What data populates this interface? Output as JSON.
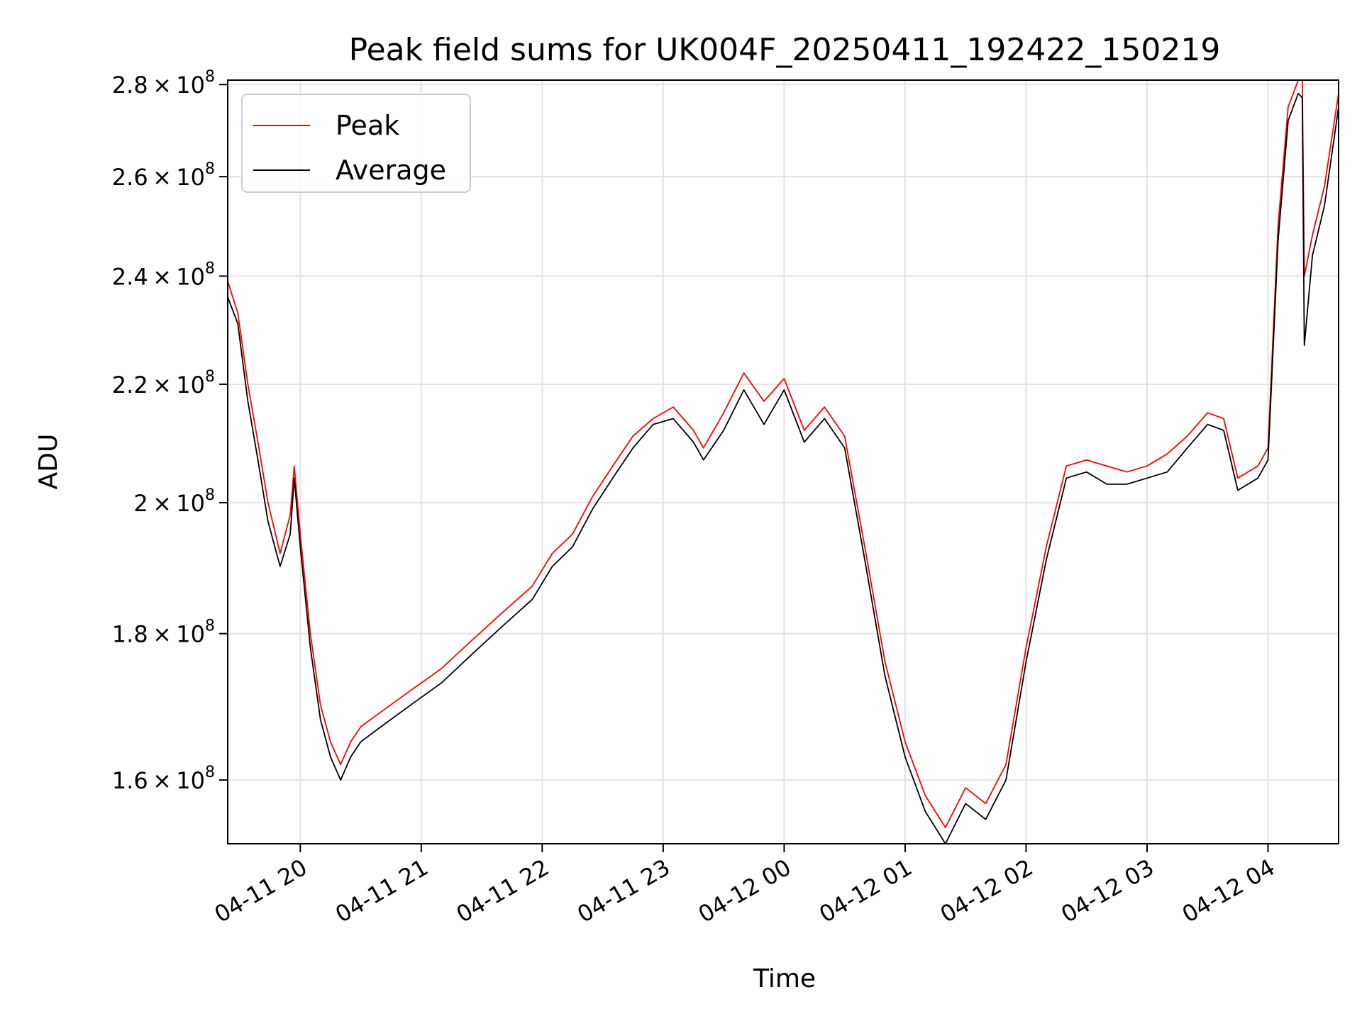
{
  "chart_data": {
    "type": "line",
    "title": "Peak field sums for UK004F_20250411_192422_150219",
    "xlabel": "Time",
    "ylabel": "ADU",
    "y_scale": "log",
    "ylim": [
      152000000,
      281000000
    ],
    "xlim": [
      "2025-04-11 19:24",
      "2025-04-12 04:35"
    ],
    "grid": true,
    "legend_position": "top-left",
    "x_ticks": [
      {
        "t": "2025-04-11 20:00",
        "label": "04-11 20"
      },
      {
        "t": "2025-04-11 21:00",
        "label": "04-11 21"
      },
      {
        "t": "2025-04-11 22:00",
        "label": "04-11 22"
      },
      {
        "t": "2025-04-11 23:00",
        "label": "04-11 23"
      },
      {
        "t": "2025-04-12 00:00",
        "label": "04-12 00"
      },
      {
        "t": "2025-04-12 01:00",
        "label": "04-12 01"
      },
      {
        "t": "2025-04-12 02:00",
        "label": "04-12 02"
      },
      {
        "t": "2025-04-12 03:00",
        "label": "04-12 03"
      },
      {
        "t": "2025-04-12 04:00",
        "label": "04-12 04"
      }
    ],
    "y_ticks": [
      {
        "value": 160000000,
        "mantissa": "1.6",
        "base": "10",
        "exp": "8"
      },
      {
        "value": 180000000,
        "mantissa": "1.8",
        "base": "10",
        "exp": "8"
      },
      {
        "value": 200000000,
        "mantissa": "2",
        "base": "10",
        "exp": "8"
      },
      {
        "value": 220000000,
        "mantissa": "2.2",
        "base": "10",
        "exp": "8"
      },
      {
        "value": 240000000,
        "mantissa": "2.4",
        "base": "10",
        "exp": "8"
      },
      {
        "value": 260000000,
        "mantissa": "2.6",
        "base": "10",
        "exp": "8"
      },
      {
        "value": 280000000,
        "mantissa": "2.8",
        "base": "10",
        "exp": "8"
      }
    ],
    "x": [
      "2025-04-11 19:24",
      "2025-04-11 19:29",
      "2025-04-11 19:34",
      "2025-04-11 19:39",
      "2025-04-11 19:44",
      "2025-04-11 19:50",
      "2025-04-11 19:55",
      "2025-04-11 19:57",
      "2025-04-11 20:00",
      "2025-04-11 20:05",
      "2025-04-11 20:10",
      "2025-04-11 20:15",
      "2025-04-11 20:20",
      "2025-04-11 20:25",
      "2025-04-11 20:30",
      "2025-04-11 20:40",
      "2025-04-11 20:55",
      "2025-04-11 21:10",
      "2025-04-11 21:25",
      "2025-04-11 21:40",
      "2025-04-11 21:55",
      "2025-04-11 22:05",
      "2025-04-11 22:15",
      "2025-04-11 22:25",
      "2025-04-11 22:35",
      "2025-04-11 22:45",
      "2025-04-11 22:55",
      "2025-04-11 23:05",
      "2025-04-11 23:15",
      "2025-04-11 23:20",
      "2025-04-11 23:30",
      "2025-04-11 23:40",
      "2025-04-11 23:50",
      "2025-04-12 00:00",
      "2025-04-12 00:10",
      "2025-04-12 00:20",
      "2025-04-12 00:30",
      "2025-04-12 00:40",
      "2025-04-12 00:50",
      "2025-04-12 01:00",
      "2025-04-12 01:10",
      "2025-04-12 01:20",
      "2025-04-12 01:30",
      "2025-04-12 01:40",
      "2025-04-12 01:50",
      "2025-04-12 02:00",
      "2025-04-12 02:10",
      "2025-04-12 02:20",
      "2025-04-12 02:30",
      "2025-04-12 02:40",
      "2025-04-12 02:50",
      "2025-04-12 03:00",
      "2025-04-12 03:10",
      "2025-04-12 03:20",
      "2025-04-12 03:30",
      "2025-04-12 03:38",
      "2025-04-12 03:45",
      "2025-04-12 03:55",
      "2025-04-12 04:00",
      "2025-04-12 04:05",
      "2025-04-12 04:10",
      "2025-04-12 04:15",
      "2025-04-12 04:17",
      "2025-04-12 04:18",
      "2025-04-12 04:22",
      "2025-04-12 04:28",
      "2025-04-12 04:35"
    ],
    "series": [
      {
        "name": "Peak",
        "color": "#ff0000",
        "values": [
          239000000,
          233000000,
          220000000,
          210000000,
          200000000,
          192000000,
          198000000,
          206000000,
          195000000,
          180000000,
          170000000,
          165000000,
          162000000,
          165000000,
          167000000,
          169000000,
          172000000,
          175000000,
          179000000,
          183000000,
          187000000,
          192000000,
          195000000,
          201000000,
          206000000,
          211000000,
          214000000,
          216000000,
          212000000,
          209000000,
          215000000,
          222000000,
          217000000,
          221000000,
          212000000,
          216000000,
          211000000,
          193000000,
          176000000,
          165000000,
          158000000,
          154000000,
          159000000,
          157000000,
          162000000,
          178000000,
          193000000,
          206000000,
          207000000,
          206000000,
          205000000,
          206000000,
          208000000,
          211000000,
          215000000,
          214000000,
          204000000,
          206000000,
          209000000,
          250000000,
          275000000,
          281000000,
          281000000,
          240000000,
          248000000,
          258000000,
          278000000
        ]
      },
      {
        "name": "Average",
        "color": "#000000",
        "values": [
          236000000,
          231000000,
          217000000,
          207000000,
          197000000,
          190000000,
          195000000,
          204000000,
          193000000,
          178000000,
          168000000,
          163000000,
          160000000,
          163000000,
          165000000,
          167000000,
          170000000,
          173000000,
          177000000,
          181000000,
          185000000,
          190000000,
          193000000,
          199000000,
          204000000,
          209000000,
          213000000,
          214000000,
          210000000,
          207000000,
          212000000,
          219000000,
          213000000,
          219000000,
          210000000,
          214000000,
          209000000,
          191000000,
          174000000,
          163000000,
          156000000,
          152000000,
          157000000,
          155000000,
          160000000,
          176000000,
          191000000,
          204000000,
          205000000,
          203000000,
          203000000,
          204000000,
          205000000,
          209000000,
          213000000,
          212000000,
          202000000,
          204000000,
          207000000,
          247000000,
          272000000,
          278000000,
          277000000,
          227000000,
          244000000,
          254000000,
          275000000
        ]
      }
    ]
  }
}
